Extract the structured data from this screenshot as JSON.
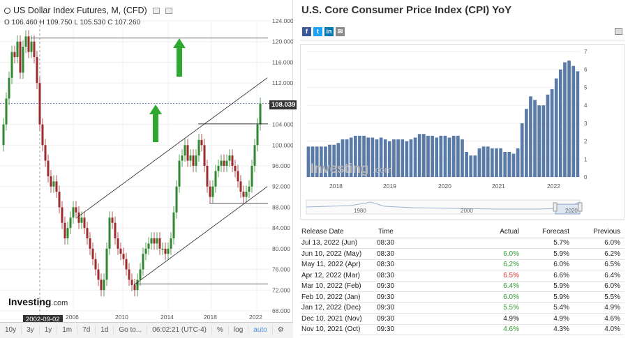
{
  "left": {
    "symbol": "US Dollar Index Futures, M, (CFD)",
    "ohlc": "O 106.460  H 109.750  L 105.530  C 107.260",
    "price_tag": "108.039",
    "date_tag": "2002-09-02",
    "logo_main": "Investing",
    "logo_suffix": ".com",
    "y_axis": [
      "124.000",
      "120.000",
      "116.000",
      "112.000",
      "108.000",
      "104.000",
      "100.000",
      "96.000",
      "92.000",
      "88.000",
      "84.000",
      "80.000",
      "76.000",
      "72.000",
      "68.000"
    ],
    "x_axis": [
      "2006",
      "2010",
      "2014",
      "2018",
      "2022"
    ],
    "bottom_bar": [
      "10y",
      "3y",
      "1y",
      "1m",
      "7d",
      "1d",
      "Go to...",
      "06:02:21 (UTC-4)",
      "%",
      "log",
      "auto"
    ]
  },
  "right": {
    "title": "U.S. Core Consumer Price Index (CPI) YoY",
    "social": [
      {
        "label": "f",
        "color": "#3b5998"
      },
      {
        "label": "t",
        "color": "#1da1f2"
      },
      {
        "label": "in",
        "color": "#0077b5"
      },
      {
        "label": "✉",
        "color": "#888888"
      }
    ],
    "mini_chart": {
      "years": [
        "2018",
        "2019",
        "2020",
        "2021",
        "2022"
      ],
      "y_ticks": [
        "0",
        "1",
        "2",
        "3",
        "4",
        "5",
        "6",
        "7"
      ],
      "nav_years": [
        "1980",
        "2000",
        "2020"
      ],
      "logo_main": "Investing",
      "logo_suffix": ".com"
    },
    "table": {
      "headers": [
        "Release Date",
        "Time",
        "Actual",
        "Forecast",
        "Previous"
      ],
      "rows": [
        {
          "date": "Jul 13, 2022 (Jun)",
          "time": "08:30",
          "actual": "",
          "actual_color": "none",
          "forecast": "5.7%",
          "previous": "6.0%"
        },
        {
          "date": "Jun 10, 2022 (May)",
          "time": "08:30",
          "actual": "6.0%",
          "actual_color": "green",
          "forecast": "5.9%",
          "previous": "6.2%"
        },
        {
          "date": "May 11, 2022 (Apr)",
          "time": "08:30",
          "actual": "6.2%",
          "actual_color": "green",
          "forecast": "6.0%",
          "previous": "6.5%"
        },
        {
          "date": "Apr 12, 2022 (Mar)",
          "time": "08:30",
          "actual": "6.5%",
          "actual_color": "red",
          "forecast": "6.6%",
          "previous": "6.4%"
        },
        {
          "date": "Mar 10, 2022 (Feb)",
          "time": "09:30",
          "actual": "6.4%",
          "actual_color": "green",
          "forecast": "5.9%",
          "previous": "6.0%"
        },
        {
          "date": "Feb 10, 2022 (Jan)",
          "time": "09:30",
          "actual": "6.0%",
          "actual_color": "green",
          "forecast": "5.9%",
          "previous": "5.5%"
        },
        {
          "date": "Jan 12, 2022 (Dec)",
          "time": "09:30",
          "actual": "5.5%",
          "actual_color": "green",
          "forecast": "5.4%",
          "previous": "4.9%"
        },
        {
          "date": "Dec 10, 2021 (Nov)",
          "time": "09:30",
          "actual": "4.9%",
          "actual_color": "none",
          "forecast": "4.9%",
          "previous": "4.6%"
        },
        {
          "date": "Nov 10, 2021 (Oct)",
          "time": "09:30",
          "actual": "4.6%",
          "actual_color": "green",
          "forecast": "4.3%",
          "previous": "4.0%"
        }
      ]
    }
  }
}
